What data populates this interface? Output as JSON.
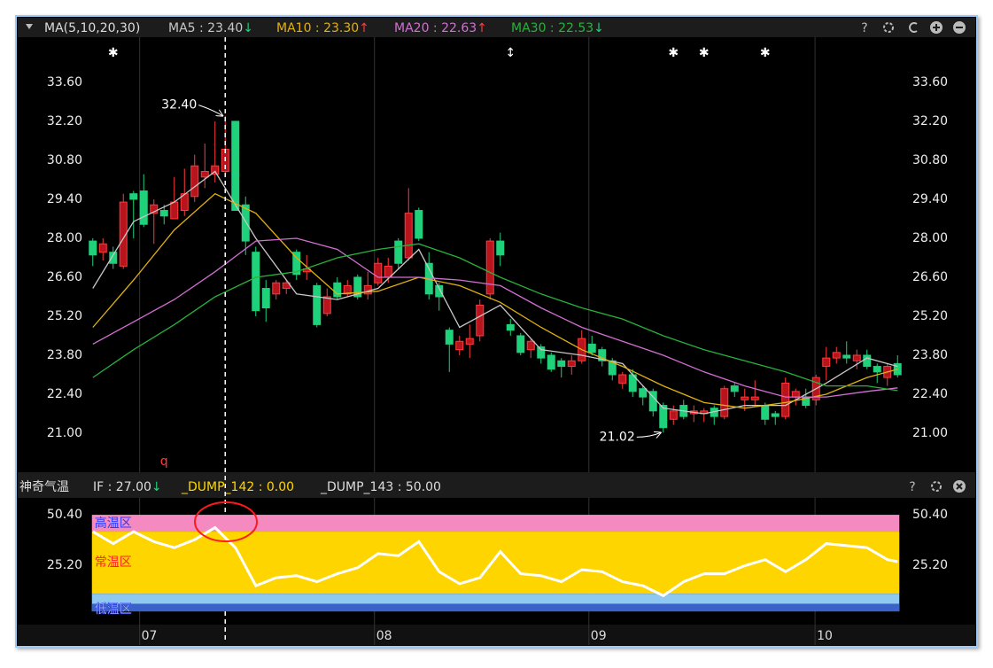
{
  "chart_data": [
    {
      "type": "candlestick",
      "indicator": "MA(5,10,20,30)",
      "help": "?",
      "up_color": "#ff3b3b",
      "up_fill": "#b8141e",
      "down_color": "#1ed17a",
      "xlim": [
        -0.5,
        79.5
      ],
      "ylim": [
        19.6,
        35.22
      ],
      "xticks": [
        {
          "value": 4.6,
          "label": "07"
        },
        {
          "value": 27.65,
          "label": "08"
        },
        {
          "value": 48.7,
          "label": "09"
        },
        {
          "value": 70.9,
          "label": "10"
        }
      ],
      "yticks": [
        {
          "value": 33.6,
          "label": "33.60"
        },
        {
          "value": 32.2,
          "label": "32.20"
        },
        {
          "value": 30.8,
          "label": "30.80"
        },
        {
          "value": 29.4,
          "label": "29.40"
        },
        {
          "value": 28,
          "label": "28.00"
        },
        {
          "value": 26.6,
          "label": "26.60"
        },
        {
          "value": 25.2,
          "label": "25.20"
        },
        {
          "value": 23.8,
          "label": "23.80"
        },
        {
          "value": 22.4,
          "label": "22.40"
        },
        {
          "value": 21,
          "label": "21.00"
        }
      ],
      "crosshair_index": 13,
      "candles": [
        [
          27.9,
          28.0,
          27.0,
          27.4
        ],
        [
          27.5,
          28.0,
          27.2,
          27.8
        ],
        [
          27.5,
          27.7,
          26.9,
          27.1
        ],
        [
          27.0,
          29.6,
          26.9,
          29.3
        ],
        [
          29.6,
          29.7,
          28.0,
          29.4
        ],
        [
          29.7,
          30.3,
          28.4,
          28.5
        ],
        [
          28.9,
          29.4,
          27.8,
          29.2
        ],
        [
          29.0,
          29.2,
          28.5,
          28.8
        ],
        [
          28.7,
          30.2,
          28.7,
          29.3
        ],
        [
          29.0,
          30.5,
          28.8,
          29.6
        ],
        [
          29.5,
          31.0,
          29.3,
          30.6
        ],
        [
          30.2,
          31.4,
          29.8,
          30.4
        ],
        [
          30.3,
          32.2,
          30.0,
          30.6
        ],
        [
          30.4,
          32.4,
          30.2,
          31.2
        ],
        [
          32.2,
          32.2,
          29.0,
          29.0
        ],
        [
          29.2,
          29.5,
          27.4,
          27.9
        ],
        [
          27.5,
          27.7,
          25.2,
          25.4
        ],
        [
          26.2,
          26.5,
          25.0,
          25.5
        ],
        [
          26.0,
          26.5,
          25.8,
          26.4
        ],
        [
          26.2,
          26.5,
          26.0,
          26.4
        ],
        [
          27.5,
          27.6,
          26.5,
          26.7
        ],
        [
          26.8,
          27.4,
          26.5,
          26.9
        ],
        [
          26.3,
          26.4,
          24.8,
          24.9
        ],
        [
          25.3,
          26.2,
          25.2,
          25.9
        ],
        [
          26.4,
          26.6,
          25.8,
          25.9
        ],
        [
          26.0,
          26.5,
          25.9,
          26.3
        ],
        [
          26.6,
          26.7,
          25.8,
          25.9
        ],
        [
          26.0,
          26.8,
          25.8,
          26.3
        ],
        [
          26.4,
          27.3,
          26.3,
          27.1
        ],
        [
          26.6,
          27.3,
          26.4,
          27.0
        ],
        [
          27.9,
          28.0,
          26.9,
          27.1
        ],
        [
          27.3,
          29.8,
          27.2,
          28.9
        ],
        [
          29.0,
          29.1,
          27.9,
          28.0
        ],
        [
          27.1,
          27.5,
          25.8,
          26.0
        ],
        [
          26.3,
          26.4,
          25.4,
          25.9
        ],
        [
          24.7,
          24.8,
          23.2,
          24.2
        ],
        [
          24.0,
          24.5,
          23.8,
          24.3
        ],
        [
          24.2,
          24.9,
          23.7,
          24.4
        ],
        [
          24.5,
          25.8,
          24.3,
          25.6
        ],
        [
          26.0,
          28.0,
          25.8,
          27.9
        ],
        [
          27.9,
          28.2,
          27.0,
          27.4
        ],
        [
          24.9,
          25.1,
          24.5,
          24.7
        ],
        [
          24.5,
          24.6,
          23.8,
          23.9
        ],
        [
          24.0,
          24.4,
          23.7,
          24.3
        ],
        [
          24.1,
          24.2,
          23.5,
          23.7
        ],
        [
          23.8,
          23.9,
          23.2,
          23.3
        ],
        [
          23.6,
          23.7,
          23.0,
          23.4
        ],
        [
          23.4,
          23.8,
          23.1,
          23.6
        ],
        [
          23.6,
          24.7,
          23.5,
          24.4
        ],
        [
          24.2,
          24.5,
          23.8,
          23.9
        ],
        [
          24.0,
          24.1,
          23.4,
          23.6
        ],
        [
          23.6,
          23.7,
          22.9,
          23.1
        ],
        [
          22.8,
          23.2,
          22.6,
          23.1
        ],
        [
          23.1,
          23.3,
          22.3,
          22.5
        ],
        [
          22.6,
          22.7,
          22.0,
          22.3
        ],
        [
          22.5,
          22.6,
          21.6,
          21.8
        ],
        [
          22.0,
          22.1,
          21.02,
          21.2
        ],
        [
          21.5,
          22.0,
          21.3,
          21.8
        ],
        [
          22.0,
          22.2,
          21.5,
          21.6
        ],
        [
          21.7,
          22.0,
          21.4,
          21.8
        ],
        [
          21.7,
          21.9,
          21.4,
          21.8
        ],
        [
          21.9,
          22.0,
          21.3,
          21.6
        ],
        [
          21.6,
          22.7,
          21.5,
          22.6
        ],
        [
          22.7,
          22.8,
          22.3,
          22.5
        ],
        [
          22.2,
          22.6,
          21.8,
          22.3
        ],
        [
          22.2,
          22.9,
          22.0,
          22.3
        ],
        [
          22.0,
          22.1,
          21.3,
          21.5
        ],
        [
          21.7,
          21.8,
          21.3,
          21.6
        ],
        [
          21.6,
          23.0,
          21.5,
          22.8
        ],
        [
          22.3,
          22.6,
          22.0,
          22.5
        ],
        [
          22.3,
          22.6,
          21.9,
          22.0
        ],
        [
          22.2,
          23.1,
          22.0,
          23.0
        ],
        [
          23.4,
          24.1,
          22.9,
          23.7
        ],
        [
          23.7,
          24.1,
          23.5,
          23.9
        ],
        [
          23.8,
          24.3,
          23.5,
          23.7
        ],
        [
          23.6,
          24.0,
          23.3,
          23.8
        ],
        [
          23.8,
          24.0,
          23.3,
          23.4
        ],
        [
          23.4,
          23.5,
          22.8,
          23.2
        ],
        [
          23.0,
          23.5,
          22.7,
          23.4
        ],
        [
          23.5,
          23.8,
          23.0,
          23.1
        ]
      ],
      "ma_x": [
        0,
        4,
        8,
        12,
        16,
        20,
        24,
        28,
        32,
        36,
        40,
        44,
        48,
        52,
        56,
        60,
        64,
        68,
        72,
        76,
        79
      ],
      "series": [
        {
          "name": "MA5 : 23.40",
          "trend": "↓",
          "trend_color": "#1ed17a",
          "color": "#c8c8c8",
          "values": [
            26.2,
            28.6,
            29.3,
            30.4,
            28.0,
            26.0,
            25.8,
            26.2,
            27.6,
            24.8,
            25.6,
            24.0,
            23.8,
            23.5,
            21.9,
            21.7,
            22.0,
            22.0,
            22.8,
            23.7,
            23.4
          ]
        },
        {
          "name": "MA10 : 23.30",
          "trend": "↑",
          "trend_color": "#ff3b3b",
          "color": "#e2b10e",
          "values": [
            24.8,
            26.5,
            28.3,
            29.6,
            28.9,
            27.3,
            26.0,
            26.1,
            26.6,
            26.3,
            25.7,
            24.8,
            24.0,
            23.4,
            22.7,
            22.1,
            21.9,
            22.1,
            22.4,
            23.0,
            23.3
          ]
        },
        {
          "name": "MA20 : 22.63",
          "trend": "↑",
          "trend_color": "#ff3b3b",
          "color": "#d36fd3",
          "values": [
            24.2,
            25.0,
            25.8,
            26.8,
            27.9,
            28.0,
            27.6,
            26.6,
            26.6,
            26.5,
            26.3,
            25.5,
            24.8,
            24.3,
            23.8,
            23.2,
            22.7,
            22.3,
            22.3,
            22.5,
            22.63
          ]
        },
        {
          "name": "MA30 : 22.53",
          "trend": "↓",
          "trend_color": "#1ed17a",
          "color": "#27b33a",
          "values": [
            23.0,
            24.0,
            24.9,
            25.9,
            26.6,
            26.8,
            27.3,
            27.6,
            27.8,
            27.3,
            26.6,
            26.0,
            25.5,
            25.1,
            24.5,
            24.0,
            23.6,
            23.2,
            22.7,
            22.7,
            22.53
          ]
        }
      ],
      "annotations": [
        {
          "text": "32.40",
          "index": 13,
          "value": 32.4
        },
        {
          "text": "21.02",
          "index": 56,
          "value": 21.02
        }
      ],
      "markers": [
        {
          "index": 2,
          "label": "✱"
        },
        {
          "index": 41,
          "label": "↕"
        },
        {
          "index": 57,
          "label": "✱"
        },
        {
          "index": 60,
          "label": "✱"
        },
        {
          "index": 66,
          "label": "✱"
        }
      ],
      "signals": [
        {
          "index": 7,
          "label": "q",
          "color": "#ff3b3b"
        }
      ]
    },
    {
      "type": "line",
      "title": "神奇气温",
      "help": "?",
      "items": [
        {
          "text": "IF : 27.00",
          "trend": "↓",
          "trend_color": "#1ed17a",
          "color": "#dddddd"
        },
        {
          "text": "_DUMP_142 : 0.00",
          "color": "#ffd700"
        },
        {
          "text": "_DUMP_143 : 50.00",
          "color": "#dddddd"
        }
      ],
      "ylim": [
        -4.4,
        57.5
      ],
      "yticks": [
        {
          "value": 50.4,
          "label": "50.40"
        },
        {
          "value": 25.2,
          "label": "25.20"
        }
      ],
      "zones": [
        {
          "name": "高温区",
          "from": 42,
          "to": 50.4,
          "color": "#f48ac0",
          "label_color": "#2a3cff"
        },
        {
          "name": "常温区",
          "from": 11,
          "to": 42,
          "color": "#ffd500",
          "label_color": "#ff2020"
        },
        {
          "name": "低温区",
          "from": 2.2,
          "to": 11,
          "color": "#8fc8f0",
          "label_color": "#ffffff",
          "band2": 6,
          "band2_color": "#3a62c8"
        }
      ],
      "color": "#ffffff",
      "x": [
        0,
        2,
        4,
        6,
        8,
        10,
        12,
        14,
        16,
        18,
        20,
        22,
        24,
        26,
        28,
        30,
        32,
        34,
        36,
        38,
        40,
        42,
        44,
        46,
        48,
        50,
        52,
        54,
        56,
        58,
        60,
        62,
        64,
        66,
        68,
        70,
        72,
        74,
        76,
        78,
        79
      ],
      "values": [
        42,
        36,
        42,
        37,
        34,
        38,
        44,
        34,
        15,
        19,
        20,
        17,
        21,
        24,
        31,
        30,
        37,
        22,
        16,
        19,
        32,
        21,
        20,
        17,
        23,
        22,
        17,
        15,
        10,
        17,
        21,
        21,
        25,
        28,
        22,
        28,
        36,
        35,
        34,
        28,
        27
      ]
    }
  ]
}
